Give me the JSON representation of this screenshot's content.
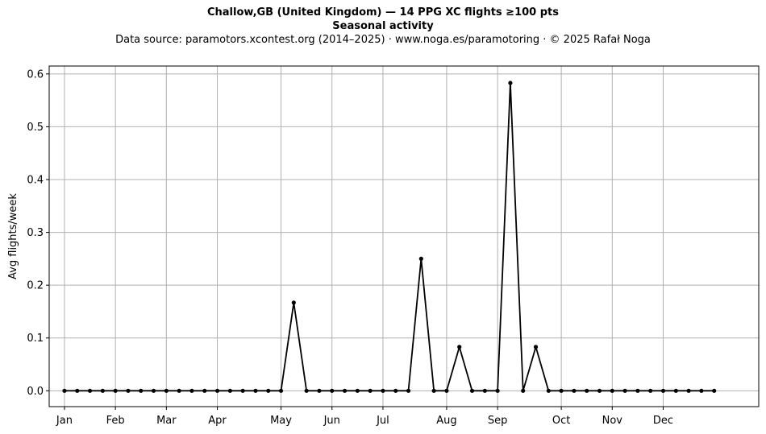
{
  "chart_data": {
    "type": "line",
    "title": "Challow,GB (United Kingdom)  —  14 PPG XC flights ≥100 pts",
    "subtitle": "Seasonal activity",
    "source_note": "Data source: paramotors.xcontest.org (2014–2025)  ·  www.noga.es/paramotoring  ·  © 2025 Rafał Noga",
    "xlabel": "",
    "ylabel": "Avg flights/week",
    "xlim": [
      -1.2,
      54.5
    ],
    "ylim": [
      -0.03,
      0.615
    ],
    "x_ticks": [
      {
        "label": "Jan",
        "week": 0
      },
      {
        "label": "Feb",
        "week": 4
      },
      {
        "label": "Mar",
        "week": 8
      },
      {
        "label": "Apr",
        "week": 12
      },
      {
        "label": "May",
        "week": 17
      },
      {
        "label": "Jun",
        "week": 21
      },
      {
        "label": "Jul",
        "week": 25
      },
      {
        "label": "Aug",
        "week": 30
      },
      {
        "label": "Sep",
        "week": 34
      },
      {
        "label": "Oct",
        "week": 39
      },
      {
        "label": "Nov",
        "week": 43
      },
      {
        "label": "Dec",
        "week": 47
      }
    ],
    "y_ticks": [
      "0.0",
      "0.1",
      "0.2",
      "0.3",
      "0.4",
      "0.5",
      "0.6"
    ],
    "y_tick_values": [
      0,
      0.1,
      0.2,
      0.3,
      0.4,
      0.5,
      0.6
    ],
    "grid": true,
    "line_color": "#000000",
    "grid_color": "#b0b0b0",
    "series": [
      {
        "x": [
          0,
          1,
          2,
          3,
          4,
          5,
          6,
          7,
          8,
          9,
          10,
          11,
          12,
          13,
          14,
          15,
          16,
          17,
          18,
          19,
          20,
          21,
          22,
          23,
          24,
          25,
          26,
          27,
          28,
          29,
          30,
          31,
          32,
          33,
          34,
          35,
          36,
          37,
          38,
          39,
          40,
          41,
          42,
          43,
          44,
          45,
          46,
          47,
          48,
          49,
          50,
          51
        ],
        "values": [
          0,
          0,
          0,
          0,
          0,
          0,
          0,
          0,
          0,
          0,
          0,
          0,
          0,
          0,
          0,
          0,
          0,
          0,
          0.167,
          0,
          0,
          0,
          0,
          0,
          0,
          0,
          0,
          0,
          0.25,
          0,
          0,
          0.083,
          0,
          0,
          0,
          0.583,
          0,
          0.083,
          0,
          0,
          0,
          0,
          0,
          0,
          0,
          0,
          0,
          0,
          0,
          0,
          0,
          0
        ]
      }
    ]
  }
}
